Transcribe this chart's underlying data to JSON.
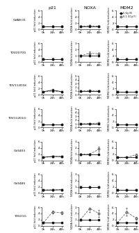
{
  "row_labels": [
    "OVA8(31",
    "TOV2070G",
    "TOV112D18",
    "TOV112D1G",
    "OV4403",
    "OV4485",
    "TOV21G"
  ],
  "col_labels": [
    "p21",
    "NOXA",
    "MDM2"
  ],
  "x_ticks": [
    0,
    24,
    48
  ],
  "x_tick_labels": [
    "0h",
    "24h",
    "48h"
  ],
  "legend_labels": [
    "5 Gy IR",
    "0.1 GCy(?)"
  ],
  "series1_color": "#111111",
  "series2_color": "#666666",
  "series1_marker": "s",
  "series2_marker": "o",
  "rows": [
    {
      "label": "OVA8(31",
      "p21": {
        "s1": [
          1.0,
          1.0,
          1.0
        ],
        "s2": [
          1.0,
          1.0,
          1.0
        ],
        "s1e": [
          0.05,
          0.05,
          0.05
        ],
        "s2e": [
          0.1,
          0.1,
          0.1
        ],
        "ylim": [
          0,
          6
        ],
        "yticks": [
          0,
          2,
          4,
          6
        ]
      },
      "noxa": {
        "s1": [
          1.0,
          1.0,
          1.0
        ],
        "s2": [
          1.0,
          1.1,
          1.0
        ],
        "s1e": [
          0.05,
          0.05,
          0.05
        ],
        "s2e": [
          0.15,
          0.15,
          0.1
        ],
        "ylim": [
          0,
          6
        ],
        "yticks": [
          0,
          2,
          4,
          6
        ]
      },
      "mdm2": {
        "s1": [
          1.0,
          1.0,
          1.0
        ],
        "s2": [
          1.0,
          1.0,
          1.0
        ],
        "s1e": [
          0.05,
          0.05,
          0.05
        ],
        "s2e": [
          0.1,
          0.1,
          0.1
        ],
        "ylim": [
          0,
          6
        ],
        "yticks": [
          0,
          2,
          4,
          6
        ]
      }
    },
    {
      "label": "TOV2070G",
      "p21": {
        "s1": [
          1.0,
          1.0,
          1.0
        ],
        "s2": [
          1.0,
          1.0,
          1.0
        ],
        "s1e": [
          0.05,
          0.05,
          0.05
        ],
        "s2e": [
          0.1,
          0.1,
          0.1
        ],
        "ylim": [
          0,
          6
        ],
        "yticks": [
          0,
          2,
          4,
          6
        ]
      },
      "noxa": {
        "s1": [
          1.0,
          1.0,
          1.0
        ],
        "s2": [
          1.0,
          1.4,
          1.3
        ],
        "s1e": [
          0.05,
          0.05,
          0.05
        ],
        "s2e": [
          0.15,
          0.25,
          0.2
        ],
        "ylim": [
          0,
          3
        ],
        "yticks": [
          0,
          1,
          2,
          3
        ]
      },
      "mdm2": {
        "s1": [
          1.0,
          1.0,
          1.0
        ],
        "s2": [
          1.0,
          1.0,
          1.0
        ],
        "s1e": [
          0.05,
          0.05,
          0.05
        ],
        "s2e": [
          0.1,
          0.1,
          0.1
        ],
        "ylim": [
          0,
          6
        ],
        "yticks": [
          0,
          2,
          4,
          6
        ]
      }
    },
    {
      "label": "TOV112D18",
      "p21": {
        "s1": [
          1.0,
          1.5,
          1.0
        ],
        "s2": [
          1.0,
          1.2,
          1.0
        ],
        "s1e": [
          0.05,
          0.25,
          0.05
        ],
        "s2e": [
          0.1,
          0.2,
          0.1
        ],
        "ylim": [
          0,
          6
        ],
        "yticks": [
          0,
          2,
          4,
          6
        ]
      },
      "noxa": {
        "s1": [
          1.0,
          1.0,
          1.0
        ],
        "s2": [
          1.0,
          1.1,
          1.0
        ],
        "s1e": [
          0.05,
          0.05,
          0.05
        ],
        "s2e": [
          0.1,
          0.15,
          0.1
        ],
        "ylim": [
          0,
          5
        ],
        "yticks": [
          0,
          1,
          2,
          3,
          4,
          5
        ]
      },
      "mdm2": {
        "s1": [
          1.0,
          1.0,
          1.0
        ],
        "s2": [
          1.0,
          1.0,
          1.0
        ],
        "s1e": [
          0.05,
          0.05,
          0.05
        ],
        "s2e": [
          0.1,
          0.1,
          0.1
        ],
        "ylim": [
          0,
          6
        ],
        "yticks": [
          0,
          2,
          4,
          6
        ]
      }
    },
    {
      "label": "TOV112D1G",
      "p21": {
        "s1": [
          1.0,
          1.0,
          1.0
        ],
        "s2": [
          1.0,
          1.0,
          1.0
        ],
        "s1e": [
          0.05,
          0.05,
          0.05
        ],
        "s2e": [
          0.1,
          0.1,
          0.1
        ],
        "ylim": [
          0,
          6
        ],
        "yticks": [
          0,
          2,
          4,
          6
        ]
      },
      "noxa": {
        "s1": [
          1.0,
          1.0,
          1.0
        ],
        "s2": [
          1.0,
          1.1,
          1.2
        ],
        "s1e": [
          0.05,
          0.05,
          0.05
        ],
        "s2e": [
          0.1,
          0.1,
          0.15
        ],
        "ylim": [
          0,
          5
        ],
        "yticks": [
          0,
          1,
          2,
          3,
          4,
          5
        ]
      },
      "mdm2": {
        "s1": [
          1.0,
          1.0,
          1.0
        ],
        "s2": [
          1.0,
          1.0,
          1.0
        ],
        "s1e": [
          0.05,
          0.05,
          0.05
        ],
        "s2e": [
          0.1,
          0.1,
          0.1
        ],
        "ylim": [
          0,
          6
        ],
        "yticks": [
          0,
          2,
          4,
          6
        ]
      }
    },
    {
      "label": "OV4403",
      "p21": {
        "s1": [
          1.0,
          1.3,
          1.2
        ],
        "s2": [
          1.0,
          1.2,
          1.3
        ],
        "s1e": [
          0.05,
          0.15,
          0.15
        ],
        "s2e": [
          0.1,
          0.15,
          0.15
        ],
        "ylim": [
          0,
          6
        ],
        "yticks": [
          0,
          2,
          4,
          6
        ]
      },
      "noxa": {
        "s1": [
          1.0,
          1.0,
          1.0
        ],
        "s2": [
          1.0,
          1.0,
          1.8
        ],
        "s1e": [
          0.05,
          0.05,
          0.05
        ],
        "s2e": [
          0.1,
          0.1,
          0.4
        ],
        "ylim": [
          0,
          3
        ],
        "yticks": [
          0,
          1,
          2,
          3
        ]
      },
      "mdm2": {
        "s1": [
          1.0,
          1.0,
          1.0
        ],
        "s2": [
          1.0,
          1.0,
          1.8
        ],
        "s1e": [
          0.05,
          0.05,
          0.05
        ],
        "s2e": [
          0.1,
          0.1,
          0.4
        ],
        "ylim": [
          0,
          6
        ],
        "yticks": [
          0,
          2,
          4,
          6
        ]
      }
    },
    {
      "label": "OV4485",
      "p21": {
        "s1": [
          1.0,
          1.0,
          1.1
        ],
        "s2": [
          1.0,
          1.1,
          1.1
        ],
        "s1e": [
          0.05,
          0.05,
          0.05
        ],
        "s2e": [
          0.1,
          0.1,
          0.15
        ],
        "ylim": [
          0,
          6
        ],
        "yticks": [
          0,
          2,
          4,
          6
        ]
      },
      "noxa": {
        "s1": [
          1.0,
          1.0,
          1.0
        ],
        "s2": [
          1.0,
          1.0,
          1.0
        ],
        "s1e": [
          0.05,
          0.05,
          0.05
        ],
        "s2e": [
          0.1,
          0.1,
          0.1
        ],
        "ylim": [
          0,
          3
        ],
        "yticks": [
          0,
          1,
          2,
          3
        ]
      },
      "mdm2": {
        "s1": [
          1.0,
          1.0,
          1.0
        ],
        "s2": [
          1.0,
          1.0,
          1.0
        ],
        "s1e": [
          0.05,
          0.05,
          0.05
        ],
        "s2e": [
          0.1,
          0.1,
          0.1
        ],
        "ylim": [
          0,
          6
        ],
        "yticks": [
          0,
          2,
          4,
          6
        ]
      }
    },
    {
      "label": "TOV21G",
      "p21": {
        "s1": [
          1.0,
          1.0,
          1.0
        ],
        "s2": [
          1.0,
          4.5,
          4.2
        ],
        "s1e": [
          0.05,
          0.05,
          0.05
        ],
        "s2e": [
          0.1,
          0.4,
          0.4
        ],
        "ylim": [
          0,
          6
        ],
        "yticks": [
          0,
          2,
          4,
          6
        ]
      },
      "noxa": {
        "s1": [
          1.0,
          1.0,
          1.0
        ],
        "s2": [
          1.0,
          2.8,
          2.0
        ],
        "s1e": [
          0.05,
          0.05,
          0.05
        ],
        "s2e": [
          0.1,
          0.6,
          0.6
        ],
        "ylim": [
          0,
          3
        ],
        "yticks": [
          0,
          1,
          2,
          3
        ]
      },
      "mdm2": {
        "s1": [
          1.0,
          1.0,
          1.0
        ],
        "s2": [
          1.0,
          4.5,
          2.5
        ],
        "s1e": [
          0.05,
          0.05,
          0.05
        ],
        "s2e": [
          0.1,
          1.2,
          0.4
        ],
        "ylim": [
          0,
          6
        ],
        "yticks": [
          0,
          2,
          4,
          6
        ]
      }
    }
  ],
  "ylabels": [
    "p21 fold induction",
    "NOXA fold induction",
    "MDM2 fold induction"
  ]
}
